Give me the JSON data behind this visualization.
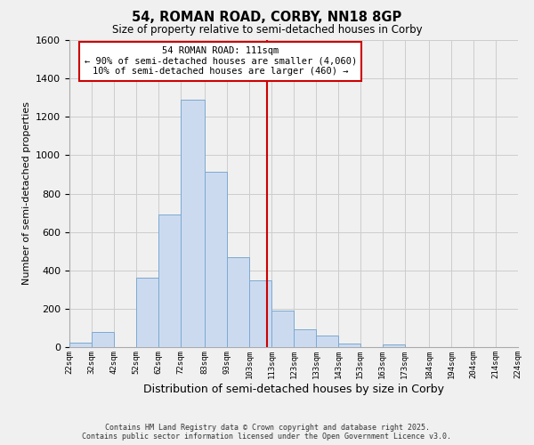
{
  "title": "54, ROMAN ROAD, CORBY, NN18 8GP",
  "subtitle": "Size of property relative to semi-detached houses in Corby",
  "xlabel": "Distribution of semi-detached houses by size in Corby",
  "ylabel": "Number of semi-detached properties",
  "bar_color": "#ccdaf0",
  "bar_edge_color": "#7aaad0",
  "background_color": "#f0f0f0",
  "grid_color": "#cccccc",
  "bin_edges": [
    22,
    32,
    42,
    52,
    62,
    72,
    83,
    93,
    103,
    113,
    123,
    133,
    143,
    153,
    163,
    173,
    184,
    194,
    204,
    214,
    224
  ],
  "bin_labels": [
    "22sqm",
    "32sqm",
    "42sqm",
    "52sqm",
    "62sqm",
    "72sqm",
    "83sqm",
    "93sqm",
    "103sqm",
    "113sqm",
    "123sqm",
    "133sqm",
    "143sqm",
    "153sqm",
    "163sqm",
    "173sqm",
    "184sqm",
    "194sqm",
    "204sqm",
    "214sqm",
    "224sqm"
  ],
  "counts": [
    25,
    80,
    0,
    360,
    690,
    1290,
    915,
    470,
    350,
    190,
    95,
    60,
    20,
    0,
    15,
    0,
    0,
    0,
    0,
    0
  ],
  "vline_x": 111,
  "vline_color": "#cc0000",
  "annotation_title": "54 ROMAN ROAD: 111sqm",
  "annotation_line1": "← 90% of semi-detached houses are smaller (4,060)",
  "annotation_line2": "10% of semi-detached houses are larger (460) →",
  "annotation_box_color": "#ffffff",
  "annotation_box_edge": "#cc0000",
  "ylim": [
    0,
    1600
  ],
  "yticks": [
    0,
    200,
    400,
    600,
    800,
    1000,
    1200,
    1400,
    1600
  ],
  "footer1": "Contains HM Land Registry data © Crown copyright and database right 2025.",
  "footer2": "Contains public sector information licensed under the Open Government Licence v3.0."
}
